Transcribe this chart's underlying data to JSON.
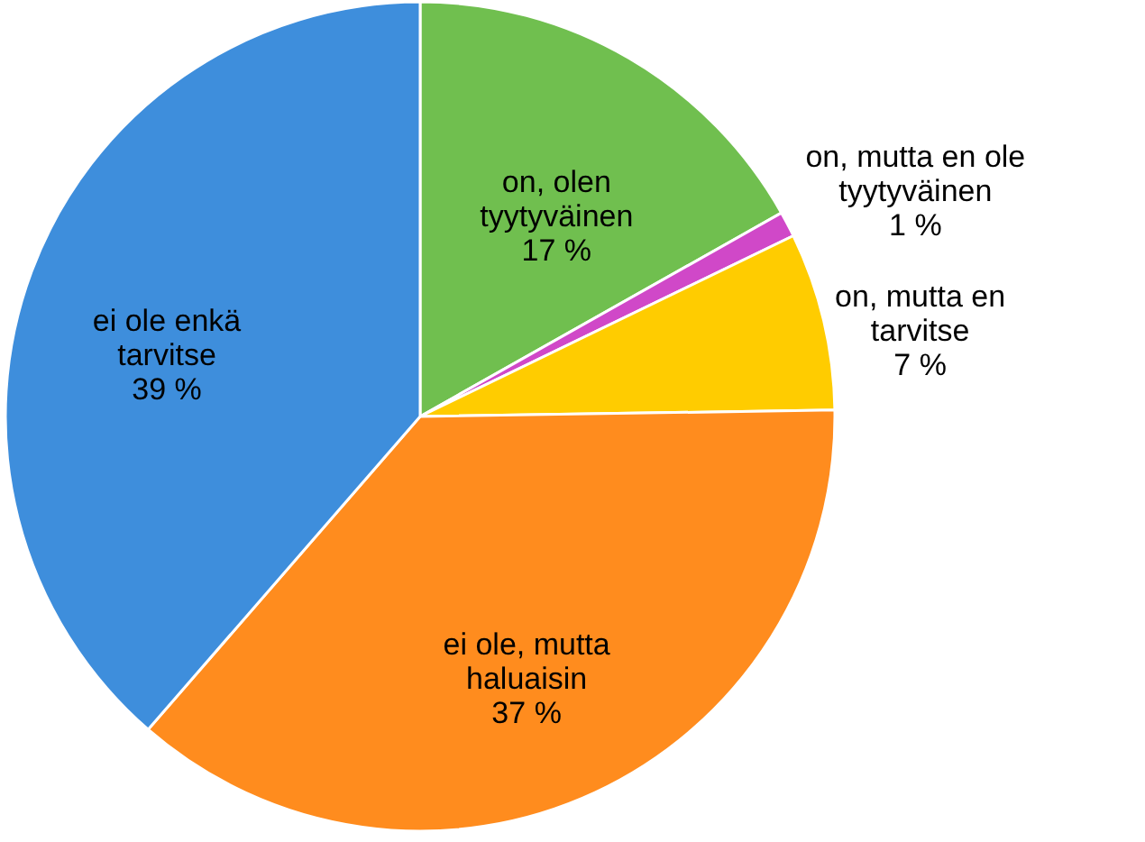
{
  "chart_data": {
    "type": "pie",
    "categories": [
      "on, olen tyytyväinen",
      "on, mutta en ole tyytyväinen",
      "on, mutta en tarvitse",
      "ei ole, mutta haluaisin",
      "ei ole enkä tarvitse"
    ],
    "values": [
      17,
      1,
      7,
      37,
      39
    ],
    "colors": [
      "#70bf4f",
      "#d048c8",
      "#ffcc00",
      "#ff8c1e",
      "#3e8edc"
    ],
    "value_labels": [
      "17 %",
      "1 %",
      "7 %",
      "37 %",
      "39 %"
    ]
  }
}
